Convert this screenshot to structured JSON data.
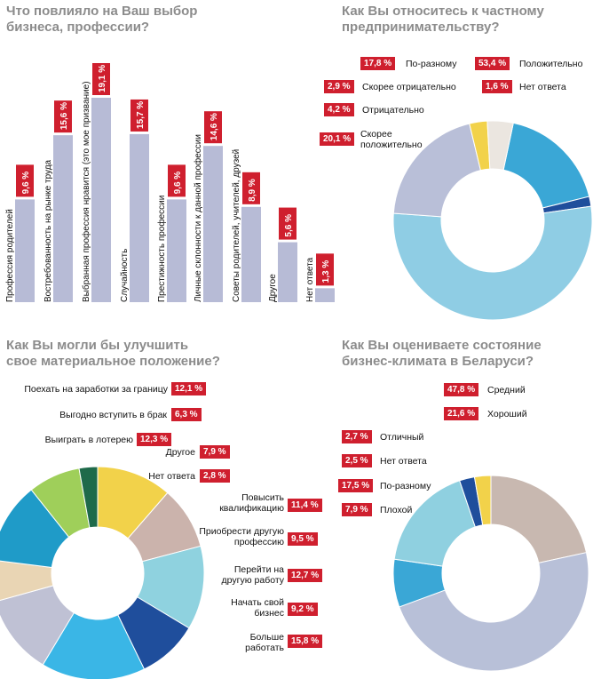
{
  "colors": {
    "badge": "#cf1f2e",
    "bar": "#b7bbd6",
    "title": "#8c8c8c"
  },
  "chart_data": [
    {
      "type": "bar",
      "title": "Что повлияло на Ваш выбор\nбизнеса, профессии?",
      "categories": [
        "Профессия родителей",
        "Востребованность на рынке труда",
        "Выбранная профессия нравится (это мое призвание)",
        "Случайность",
        "Престижность профессии",
        "Личные склонности к данной профессии",
        "Советы родителей, учителей, друзей",
        "Другое",
        "Нет ответа"
      ],
      "values": [
        9.6,
        15.6,
        19.1,
        15.7,
        9.6,
        14.6,
        8.9,
        5.6,
        1.3
      ],
      "value_labels": [
        "9,6 %",
        "15,6 %",
        "19,1 %",
        "15,7 %",
        "9,6 %",
        "14,6 %",
        "8,9 %",
        "5,6 %",
        "1,3 %"
      ]
    },
    {
      "type": "pie",
      "title": "Как Вы относитесь к частному\nпредпринимательству?",
      "slices": [
        {
          "label": "Положительно",
          "value": 53.4,
          "value_label": "53,4 %",
          "color": "#8fcde4"
        },
        {
          "label": "Скорее положительно",
          "value": 20.1,
          "value_label": "20,1 %",
          "color": "#b9bfd8"
        },
        {
          "label": "Отрицательно",
          "value": 4.2,
          "value_label": "4,2 %",
          "color": "#ebe6e0"
        },
        {
          "label": "Скорее отрицательно",
          "value": 2.9,
          "value_label": "2,9 %",
          "color": "#f2d24a"
        },
        {
          "label": "По-разному",
          "value": 17.8,
          "value_label": "17,8 %",
          "color": "#3aa7d6"
        },
        {
          "label": "Нет ответа",
          "value": 1.6,
          "value_label": "1,6 %",
          "color": "#1f4e9c"
        }
      ]
    },
    {
      "type": "pie",
      "title": "Как Вы могли бы улучшить\nсвое материальное положение?",
      "slices": [
        {
          "label": "Поехать на заработки за границу",
          "value": 12.1,
          "value_label": "12,1 %",
          "color": "#bfc1d4"
        },
        {
          "label": "Выгодно вступить в брак",
          "value": 6.3,
          "value_label": "6,3 %",
          "color": "#e9d5b4"
        },
        {
          "label": "Выиграть в лотерею",
          "value": 12.3,
          "value_label": "12,3 %",
          "color": "#1f9bc8"
        },
        {
          "label": "Другое",
          "value": 7.9,
          "value_label": "7,9 %",
          "color": "#9fcf5a"
        },
        {
          "label": "Нет ответа",
          "value": 2.8,
          "value_label": "2,8 %",
          "color": "#1f6a4a"
        },
        {
          "label": "Повысить квалификацию",
          "value": 11.4,
          "value_label": "11,4 %",
          "color": "#f2d24a"
        },
        {
          "label": "Приобрести другую профессию",
          "value": 9.5,
          "value_label": "9,5 %",
          "color": "#cbb3ac"
        },
        {
          "label": "Перейти на другую работу",
          "value": 12.7,
          "value_label": "12,7 %",
          "color": "#8fd2df"
        },
        {
          "label": "Начать свой бизнес",
          "value": 9.2,
          "value_label": "9,2 %",
          "color": "#1f4e9c"
        },
        {
          "label": "Больше работать",
          "value": 15.8,
          "value_label": "15,8 %",
          "color": "#3ab6e6"
        }
      ]
    },
    {
      "type": "pie",
      "title": "Как Вы оцениваете состояние\nбизнес-климата в Беларуси?",
      "slices": [
        {
          "label": "Средний",
          "value": 47.8,
          "value_label": "47,8 %",
          "color": "#b8c0d8"
        },
        {
          "label": "Хороший",
          "value": 21.6,
          "value_label": "21,6 %",
          "color": "#c8b8b0"
        },
        {
          "label": "Отличный",
          "value": 2.7,
          "value_label": "2,7 %",
          "color": "#f2d24a"
        },
        {
          "label": "Нет ответа",
          "value": 2.5,
          "value_label": "2,5 %",
          "color": "#1f4e9c"
        },
        {
          "label": "По-разному",
          "value": 17.5,
          "value_label": "17,5 %",
          "color": "#8fd0e0"
        },
        {
          "label": "Плохой",
          "value": 7.9,
          "value_label": "7,9 %",
          "color": "#3aa7d6"
        }
      ]
    }
  ]
}
